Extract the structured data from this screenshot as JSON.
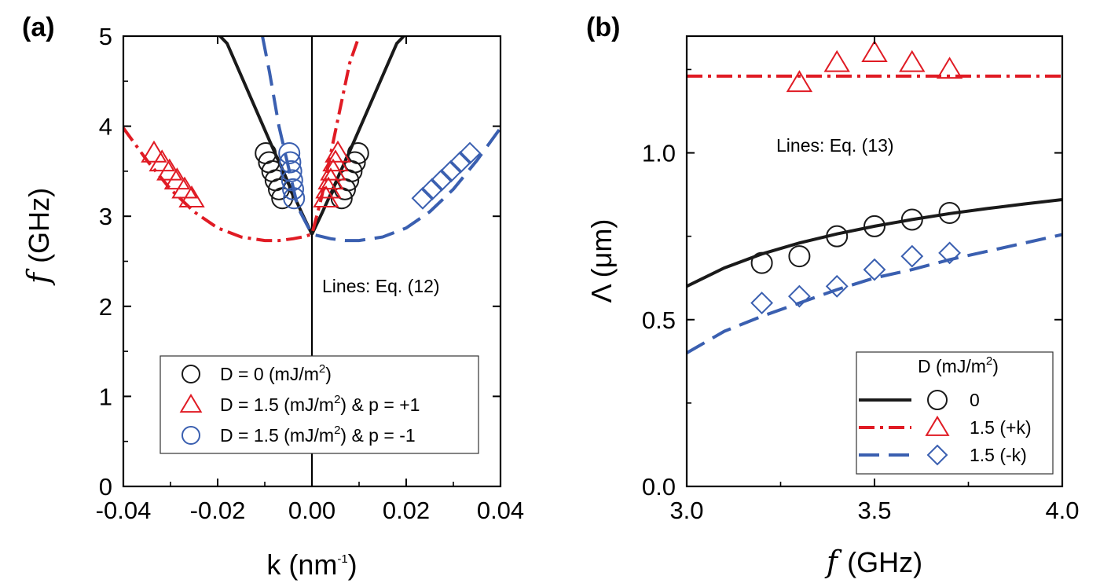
{
  "colors": {
    "black": "#1a1a1a",
    "red": "#e01b24",
    "blue": "#3a5fb0",
    "axis": "#000000"
  },
  "chart_data": [
    {
      "panel": "(a)",
      "type": "line",
      "xlabel": "k (nm",
      "xlabel_sup": "-1",
      "xlabel_close": ")",
      "ylabel_var": "f",
      "ylabel_unit": "(GHz)",
      "xlim": [
        -0.04,
        0.04
      ],
      "ylim": [
        0,
        5
      ],
      "xticks": [
        -0.04,
        -0.02,
        0.0,
        0.02,
        0.04
      ],
      "xtick_labels": [
        "-0.04",
        "-0.02",
        "0.00",
        "0.02",
        "0.04"
      ],
      "yticks": [
        0,
        1,
        2,
        3,
        4,
        5
      ],
      "ytick_labels": [
        "0",
        "1",
        "2",
        "3",
        "4",
        "5"
      ],
      "annotation": "Lines: Eq. (12)",
      "vline_x": 0,
      "curves": [
        {
          "name": "D=0 (+k)",
          "color": "black",
          "style": "solid",
          "x": [
            0,
            0.002,
            0.004,
            0.006,
            0.008,
            0.01,
            0.012,
            0.014,
            0.016,
            0.018,
            0.0195
          ],
          "y": [
            2.8,
            3.02,
            3.25,
            3.49,
            3.72,
            3.96,
            4.2,
            4.44,
            4.68,
            4.92,
            5.0
          ]
        },
        {
          "name": "D=0 (-k)",
          "color": "black",
          "style": "solid",
          "x": [
            0,
            -0.002,
            -0.004,
            -0.006,
            -0.008,
            -0.01,
            -0.012,
            -0.014,
            -0.016,
            -0.018,
            -0.0195
          ],
          "y": [
            2.8,
            3.02,
            3.25,
            3.49,
            3.72,
            3.96,
            4.2,
            4.44,
            4.68,
            4.92,
            5.0
          ]
        },
        {
          "name": "D=1.5 p=+1",
          "color": "red",
          "style": "dashdot",
          "x": [
            -0.04,
            -0.035,
            -0.03,
            -0.025,
            -0.02,
            -0.015,
            -0.01,
            -0.007,
            -0.004,
            -0.002,
            0,
            0.002,
            0.004,
            0.006,
            0.008,
            0.01
          ],
          "y": [
            3.98,
            3.62,
            3.3,
            3.05,
            2.87,
            2.77,
            2.73,
            2.73,
            2.75,
            2.77,
            2.8,
            3.2,
            3.7,
            4.2,
            4.7,
            5.0
          ]
        },
        {
          "name": "D=1.5 p=-1",
          "color": "blue",
          "style": "dashed",
          "x": [
            -0.0105,
            -0.009,
            -0.007,
            -0.005,
            -0.003,
            -0.001,
            0,
            0.004,
            0.007,
            0.01,
            0.015,
            0.02,
            0.025,
            0.03,
            0.035,
            0.04
          ],
          "y": [
            5.0,
            4.6,
            4.0,
            3.55,
            3.1,
            2.9,
            2.8,
            2.75,
            2.73,
            2.73,
            2.77,
            2.87,
            3.05,
            3.3,
            3.62,
            3.98
          ]
        }
      ],
      "series": [
        {
          "name": "D = 0 (mJ/m2)",
          "color": "black",
          "marker": "circle",
          "x": [
            -0.0098,
            -0.0091,
            -0.0084,
            -0.0077,
            -0.007,
            -0.0063,
            0.0063,
            0.007,
            0.0077,
            0.0084,
            0.0091,
            0.0098
          ],
          "y": [
            3.7,
            3.6,
            3.5,
            3.4,
            3.3,
            3.2,
            3.2,
            3.3,
            3.4,
            3.5,
            3.6,
            3.7
          ]
        },
        {
          "name": "D = 1.5 (mJ/m2) & p = +1",
          "color": "red",
          "marker": "triangle",
          "x": [
            -0.0335,
            -0.0318,
            -0.0302,
            -0.0286,
            -0.027,
            -0.0255,
            0.003,
            0.0035,
            0.004,
            0.0045,
            0.005,
            0.0055
          ],
          "y": [
            3.7,
            3.6,
            3.5,
            3.4,
            3.3,
            3.2,
            3.2,
            3.3,
            3.4,
            3.5,
            3.6,
            3.7
          ]
        },
        {
          "name": "D = 1.5 (mJ/m2) & p = -1",
          "color": "blue",
          "marker": "circle",
          "x": [
            -0.0048,
            -0.0046,
            -0.0044,
            -0.0042,
            -0.004,
            -0.0038
          ],
          "y": [
            3.7,
            3.6,
            3.5,
            3.4,
            3.3,
            3.2
          ]
        },
        {
          "name": "D = 1.5 p=-1 (+k)",
          "color": "blue",
          "marker": "diamond",
          "x": [
            0.0235,
            0.0255,
            0.0275,
            0.0295,
            0.0315,
            0.0335
          ],
          "y": [
            3.2,
            3.3,
            3.4,
            3.5,
            3.6,
            3.7
          ]
        }
      ],
      "legend": {
        "placement": "lower-center",
        "entries": [
          {
            "text": "D = 0 (mJ/m",
            "sup": "2",
            "tail": ")",
            "color": "black",
            "marker": "circle"
          },
          {
            "text": "D = 1.5 (mJ/m",
            "sup": "2",
            "tail": ") & p = +1",
            "color": "red",
            "marker": "triangle"
          },
          {
            "text": "D = 1.5 (mJ/m",
            "sup": "2",
            "tail": ") & p = -1",
            "color": "blue",
            "marker": "circle"
          }
        ]
      }
    },
    {
      "panel": "(b)",
      "type": "line",
      "xlabel_var": "f",
      "xlabel_unit": "(GHz)",
      "ylabel": "Λ (μm)",
      "xlim": [
        3.0,
        4.0
      ],
      "ylim": [
        0.0,
        1.35
      ],
      "xticks": [
        3.0,
        3.5,
        4.0
      ],
      "xtick_labels": [
        "3.0",
        "3.5",
        "4.0"
      ],
      "yticks": [
        0.0,
        0.5,
        1.0
      ],
      "ytick_labels": [
        "0.0",
        "0.5",
        "1.0"
      ],
      "annotation": "Lines: Eq. (13)",
      "curves": [
        {
          "name": "0",
          "color": "black",
          "style": "solid",
          "x": [
            3.0,
            3.1,
            3.2,
            3.3,
            3.4,
            3.5,
            3.6,
            3.7,
            3.8,
            3.9,
            4.0
          ],
          "y": [
            0.6,
            0.655,
            0.697,
            0.73,
            0.757,
            0.78,
            0.8,
            0.818,
            0.833,
            0.847,
            0.86
          ]
        },
        {
          "name": "1.5 (+k)",
          "color": "red",
          "style": "dashdot",
          "x": [
            3.0,
            4.0
          ],
          "y": [
            1.23,
            1.23
          ]
        },
        {
          "name": "1.5 (-k)",
          "color": "blue",
          "style": "dashed",
          "x": [
            3.0,
            3.1,
            3.2,
            3.3,
            3.4,
            3.5,
            3.6,
            3.7,
            3.8,
            3.9,
            4.0
          ],
          "y": [
            0.4,
            0.465,
            0.51,
            0.55,
            0.59,
            0.625,
            0.65,
            0.68,
            0.705,
            0.73,
            0.755
          ]
        }
      ],
      "series": [
        {
          "name": "0",
          "color": "black",
          "marker": "circle",
          "x": [
            3.2,
            3.3,
            3.4,
            3.5,
            3.6,
            3.7
          ],
          "y": [
            0.67,
            0.69,
            0.75,
            0.78,
            0.8,
            0.82
          ]
        },
        {
          "name": "1.5 (+k)",
          "color": "red",
          "marker": "triangle",
          "x": [
            3.3,
            3.4,
            3.5,
            3.6,
            3.7
          ],
          "y": [
            1.21,
            1.27,
            1.3,
            1.27,
            1.25
          ]
        },
        {
          "name": "1.5 (-k)",
          "color": "blue",
          "marker": "diamond",
          "x": [
            3.2,
            3.3,
            3.4,
            3.5,
            3.6,
            3.7
          ],
          "y": [
            0.55,
            0.57,
            0.6,
            0.65,
            0.69,
            0.7
          ]
        }
      ],
      "legend": {
        "placement": "bottom-right",
        "title": "D (mJ/m",
        "title_sup": "2",
        "title_tail": ")",
        "entries": [
          {
            "text": "0",
            "color": "black",
            "marker": "circle",
            "line": "solid"
          },
          {
            "text": "1.5 (+k)",
            "color": "red",
            "marker": "triangle",
            "line": "dashdot"
          },
          {
            "text": "1.5 (-k)",
            "color": "blue",
            "marker": "diamond",
            "line": "dashed"
          }
        ]
      }
    }
  ]
}
